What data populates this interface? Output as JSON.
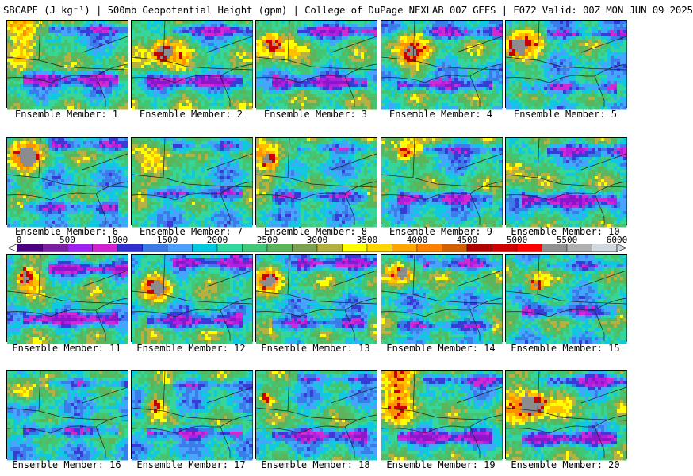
{
  "title": "SBCAPE (J kg⁻¹) | 500mb Geopotential Height (gpm) | College of DuPage NEXLAB 00Z GEFS | F072 Valid: 00Z MON JUN 09 2025",
  "label_prefix": "Ensemble Member: ",
  "members": [
    {
      "label": "Ensemble Member: 1"
    },
    {
      "label": "Ensemble Member: 2"
    },
    {
      "label": "Ensemble Member: 3"
    },
    {
      "label": "Ensemble Member: 4"
    },
    {
      "label": "Ensemble Member: 5"
    },
    {
      "label": "Ensemble Member: 6"
    },
    {
      "label": "Ensemble Member: 7"
    },
    {
      "label": "Ensemble Member: 8"
    },
    {
      "label": "Ensemble Member: 9"
    },
    {
      "label": "Ensemble Member: 10"
    },
    {
      "label": "Ensemble Member: 11"
    },
    {
      "label": "Ensemble Member: 12"
    },
    {
      "label": "Ensemble Member: 13"
    },
    {
      "label": "Ensemble Member: 14"
    },
    {
      "label": "Ensemble Member: 15"
    },
    {
      "label": "Ensemble Member: 16"
    },
    {
      "label": "Ensemble Member: 17"
    },
    {
      "label": "Ensemble Member: 18"
    },
    {
      "label": "Ensemble Member: 19"
    },
    {
      "label": "Ensemble Member: 20"
    }
  ],
  "colorbar": {
    "ticks": [
      "0",
      "500",
      "1000",
      "1500",
      "2000",
      "2500",
      "3000",
      "3500",
      "4000",
      "4500",
      "5000",
      "5500",
      "6000"
    ],
    "min": 0,
    "max": 6000,
    "step": 250,
    "colors": [
      "#ffffff",
      "#4b0082",
      "#7a1fa2",
      "#a020f0",
      "#d020d0",
      "#3030d0",
      "#3a78e6",
      "#4aa0ff",
      "#00c8e0",
      "#30d8a0",
      "#40c878",
      "#5ab45a",
      "#7aa050",
      "#b4b040",
      "#ffff00",
      "#ffd700",
      "#ffa500",
      "#ff8000",
      "#d06000",
      "#b00000",
      "#d00000",
      "#ff0000",
      "#909090",
      "#b0b0b0",
      "#d0d8e0"
    ]
  }
}
